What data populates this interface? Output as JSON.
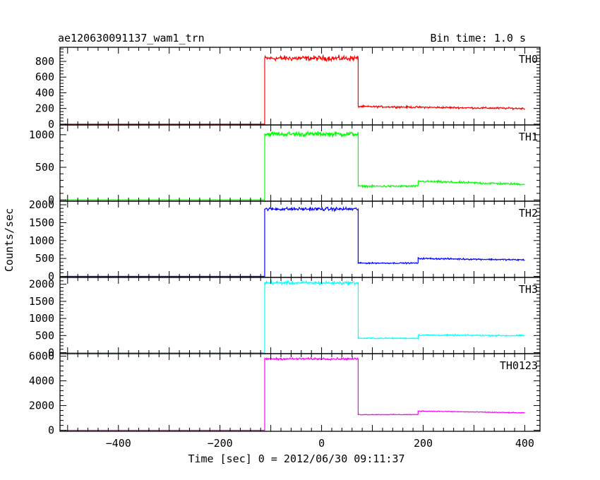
{
  "header": {
    "title": "ae120630091137_wam1_trn",
    "bin_time": "Bin time: 1.0 s"
  },
  "chart_data": {
    "type": "line",
    "title": "ae120630091137_wam1_trn",
    "subtitle": "Bin time: 1.0 s",
    "xlabel": "Time [sec] 0 = 2012/06/30 09:11:37",
    "ylabel": "Counts/sec",
    "xlim": [
      -515,
      430
    ],
    "x_ticks": [
      -400,
      -200,
      0,
      200,
      400
    ],
    "x_tick_labels": [
      "−400",
      "−200",
      "0",
      "200",
      "400"
    ],
    "grid": false,
    "panels": [
      {
        "name": "TH0",
        "color": "#ff0000",
        "ylim": [
          -10,
          980
        ],
        "yticks": [
          0,
          200,
          400,
          600,
          800
        ],
        "segments": [
          {
            "x": [
              -505,
              -112
            ],
            "y": 0,
            "noise": 0
          },
          {
            "x": [
              -112,
              72
            ],
            "y": 840,
            "noise": 28
          },
          {
            "x": [
              72,
              400
            ],
            "y": 225,
            "noise": 10,
            "trend": -25
          }
        ]
      },
      {
        "name": "TH1",
        "color": "#00ff00",
        "ylim": [
          -20,
          1150
        ],
        "yticks": [
          0,
          500,
          1000
        ],
        "segments": [
          {
            "x": [
              -505,
              -112
            ],
            "y": 0,
            "noise": 0
          },
          {
            "x": [
              -112,
              72
            ],
            "y": 1010,
            "noise": 32
          },
          {
            "x": [
              72,
              190
            ],
            "y": 210,
            "noise": 12
          },
          {
            "x": [
              190,
              400
            ],
            "y": 285,
            "noise": 14,
            "trend": -45
          }
        ]
      },
      {
        "name": "TH2",
        "color": "#0000ff",
        "ylim": [
          -30,
          2100
        ],
        "yticks": [
          0,
          500,
          1000,
          1500,
          2000
        ],
        "segments": [
          {
            "x": [
              -505,
              -112
            ],
            "y": 0,
            "noise": 0
          },
          {
            "x": [
              -112,
              72
            ],
            "y": 1880,
            "noise": 40
          },
          {
            "x": [
              72,
              190
            ],
            "y": 370,
            "noise": 15
          },
          {
            "x": [
              190,
              400
            ],
            "y": 500,
            "noise": 18,
            "trend": -40
          }
        ]
      },
      {
        "name": "TH3",
        "color": "#00ffff",
        "ylim": [
          -30,
          2200
        ],
        "yticks": [
          0,
          500,
          1000,
          1500,
          2000
        ],
        "segments": [
          {
            "x": [
              -505,
              -112
            ],
            "y": 0,
            "noise": 0
          },
          {
            "x": [
              -112,
              72
            ],
            "y": 2040,
            "noise": 40
          },
          {
            "x": [
              72,
              190
            ],
            "y": 420,
            "noise": 15
          },
          {
            "x": [
              190,
              400
            ],
            "y": 515,
            "noise": 18,
            "trend": -20
          }
        ]
      },
      {
        "name": "TH0123",
        "color": "#ff00ff",
        "ylim": [
          -80,
          6200
        ],
        "yticks": [
          0,
          2000,
          4000,
          6000
        ],
        "segments": [
          {
            "x": [
              -505,
              -112
            ],
            "y": 0,
            "noise": 0
          },
          {
            "x": [
              -112,
              72
            ],
            "y": 5780,
            "noise": 70
          },
          {
            "x": [
              72,
              190
            ],
            "y": 1270,
            "noise": 25
          },
          {
            "x": [
              190,
              400
            ],
            "y": 1560,
            "noise": 28,
            "trend": -150
          }
        ]
      }
    ]
  }
}
